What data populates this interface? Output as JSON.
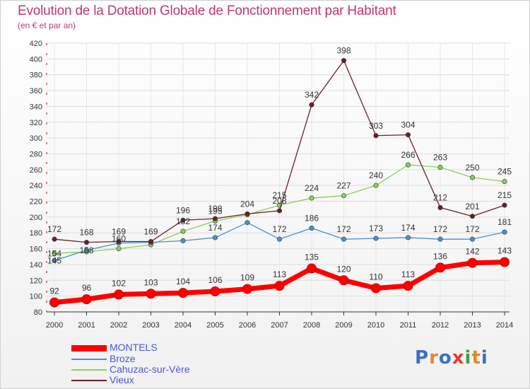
{
  "header": {
    "title": "Evolution de la Dotation Globale de Fonctionnement par Habitant",
    "subtitle": "(en € et par an)"
  },
  "logo": {
    "text": "Proxiti"
  },
  "colors": {
    "title": "#c0386e",
    "legend_text": "#4a57d6",
    "montels": "#ff0000",
    "broze": "#4a90d0",
    "cahuzac": "#88d158",
    "vieux": "#6b1f24"
  },
  "chart_data": {
    "type": "line",
    "title": "Evolution de la Dotation Globale de Fonctionnement par Habitant",
    "subtitle": "(en € et par an)",
    "categories": [
      "2000",
      "2001",
      "2002",
      "2003",
      "2004",
      "2005",
      "2006",
      "2007",
      "2008",
      "2009",
      "2010",
      "2011",
      "2012",
      "2013",
      "2014"
    ],
    "ylim": [
      80,
      420
    ],
    "yticks": [
      80,
      100,
      120,
      140,
      160,
      180,
      200,
      220,
      240,
      260,
      280,
      300,
      320,
      340,
      360,
      380,
      400,
      420
    ],
    "grid": true,
    "legend_position": "bottom-left",
    "series": [
      {
        "name": "MONTELS",
        "color": "#ff0000",
        "values": [
          92,
          96,
          102,
          103,
          104,
          106,
          109,
          113,
          135,
          120,
          110,
          113,
          136,
          142,
          143
        ]
      },
      {
        "name": "Broze",
        "color": "#4a90d0",
        "values": [
          145,
          158,
          167,
          168,
          170,
          174,
          193,
          172,
          186,
          172,
          173,
          174,
          172,
          172,
          181
        ]
      },
      {
        "name": "Cahuzac-sur-Vère",
        "color": "#88d158",
        "values": [
          154,
          156,
          160,
          165,
          182,
          195,
          203,
          215,
          224,
          227,
          240,
          266,
          263,
          250,
          245
        ]
      },
      {
        "name": "Vieux",
        "color": "#6b1f24",
        "values": [
          172,
          168,
          169,
          169,
          196,
          198,
          204,
          208,
          342,
          398,
          303,
          304,
          212,
          201,
          215
        ]
      }
    ],
    "data_labels": [
      [
        "92",
        "96",
        "102",
        "103",
        "104",
        "106",
        "109",
        "113",
        "135",
        "120",
        "110",
        "113",
        "136",
        "142",
        "143"
      ],
      [
        "145",
        "158",
        "",
        "",
        "",
        "174",
        "",
        "172",
        "186",
        "172",
        "173",
        "174",
        "172",
        "172",
        "181"
      ],
      [
        "154",
        "",
        "160",
        "",
        "182",
        "195",
        "",
        "215",
        "224",
        "227",
        "240",
        "266",
        "263",
        "250",
        "245"
      ],
      [
        "172",
        "168",
        "169",
        "169",
        "196",
        "198",
        "204",
        "208",
        "342",
        "398",
        "303",
        "304",
        "212",
        "201",
        "215"
      ]
    ]
  }
}
